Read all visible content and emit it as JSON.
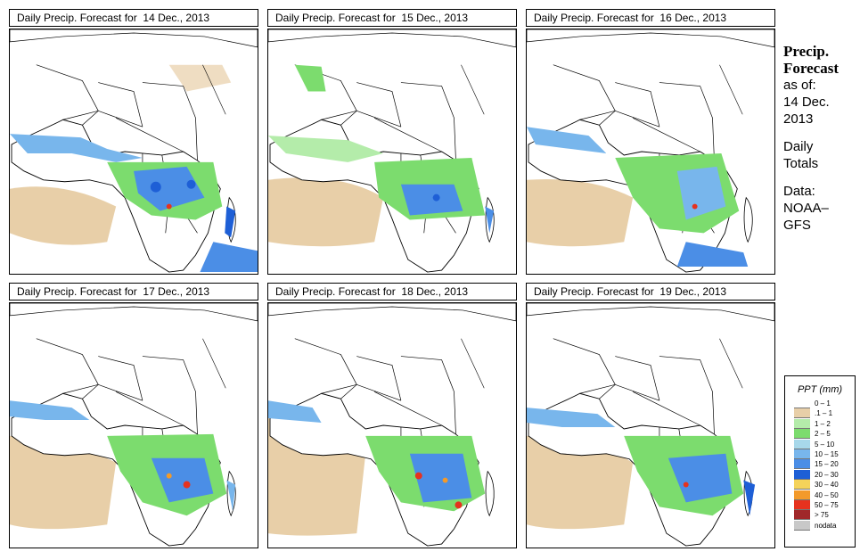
{
  "panels": [
    {
      "title_prefix": "Daily Precip. Forecast for",
      "date": "14 Dec., 2013"
    },
    {
      "title_prefix": "Daily Precip. Forecast for",
      "date": "15 Dec., 2013"
    },
    {
      "title_prefix": "Daily Precip. Forecast for",
      "date": "16 Dec., 2013"
    },
    {
      "title_prefix": "Daily Precip. Forecast for",
      "date": "17 Dec., 2013"
    },
    {
      "title_prefix": "Daily Precip. Forecast for",
      "date": "18 Dec., 2013"
    },
    {
      "title_prefix": "Daily Precip. Forecast for",
      "date": "19 Dec., 2013"
    }
  ],
  "sidebar": {
    "title_line1": "Precip.",
    "title_line2": "Forecast",
    "asof_label": "as of:",
    "asof_date_line1": "14 Dec.",
    "asof_date_line2": "2013",
    "totals_line1": "Daily",
    "totals_line2": "Totals",
    "data_line1": "Data:",
    "data_line2": "NOAA–",
    "data_line3": "GFS"
  },
  "legend": {
    "title": "PPT (mm)",
    "items": [
      {
        "label": "0 – 1",
        "color": "#ffffff"
      },
      {
        "label": ".1 – 1",
        "color": "#e8cfa8"
      },
      {
        "label": "1 – 2",
        "color": "#b4ecaa"
      },
      {
        "label": "2 – 5",
        "color": "#7cdc6e"
      },
      {
        "label": "5 – 10",
        "color": "#a8d8ea"
      },
      {
        "label": "10 – 15",
        "color": "#78b6ec"
      },
      {
        "label": "15 – 20",
        "color": "#4b8ee6"
      },
      {
        "label": "20 – 30",
        "color": "#1e5fd6"
      },
      {
        "label": "30 – 40",
        "color": "#f5d35a"
      },
      {
        "label": "40 – 50",
        "color": "#f39a2a"
      },
      {
        "label": "50 – 75",
        "color": "#e6321e"
      },
      {
        "label": "> 75",
        "color": "#a0282a"
      },
      {
        "label": "nodata",
        "color": "#c8c8c8"
      }
    ]
  }
}
